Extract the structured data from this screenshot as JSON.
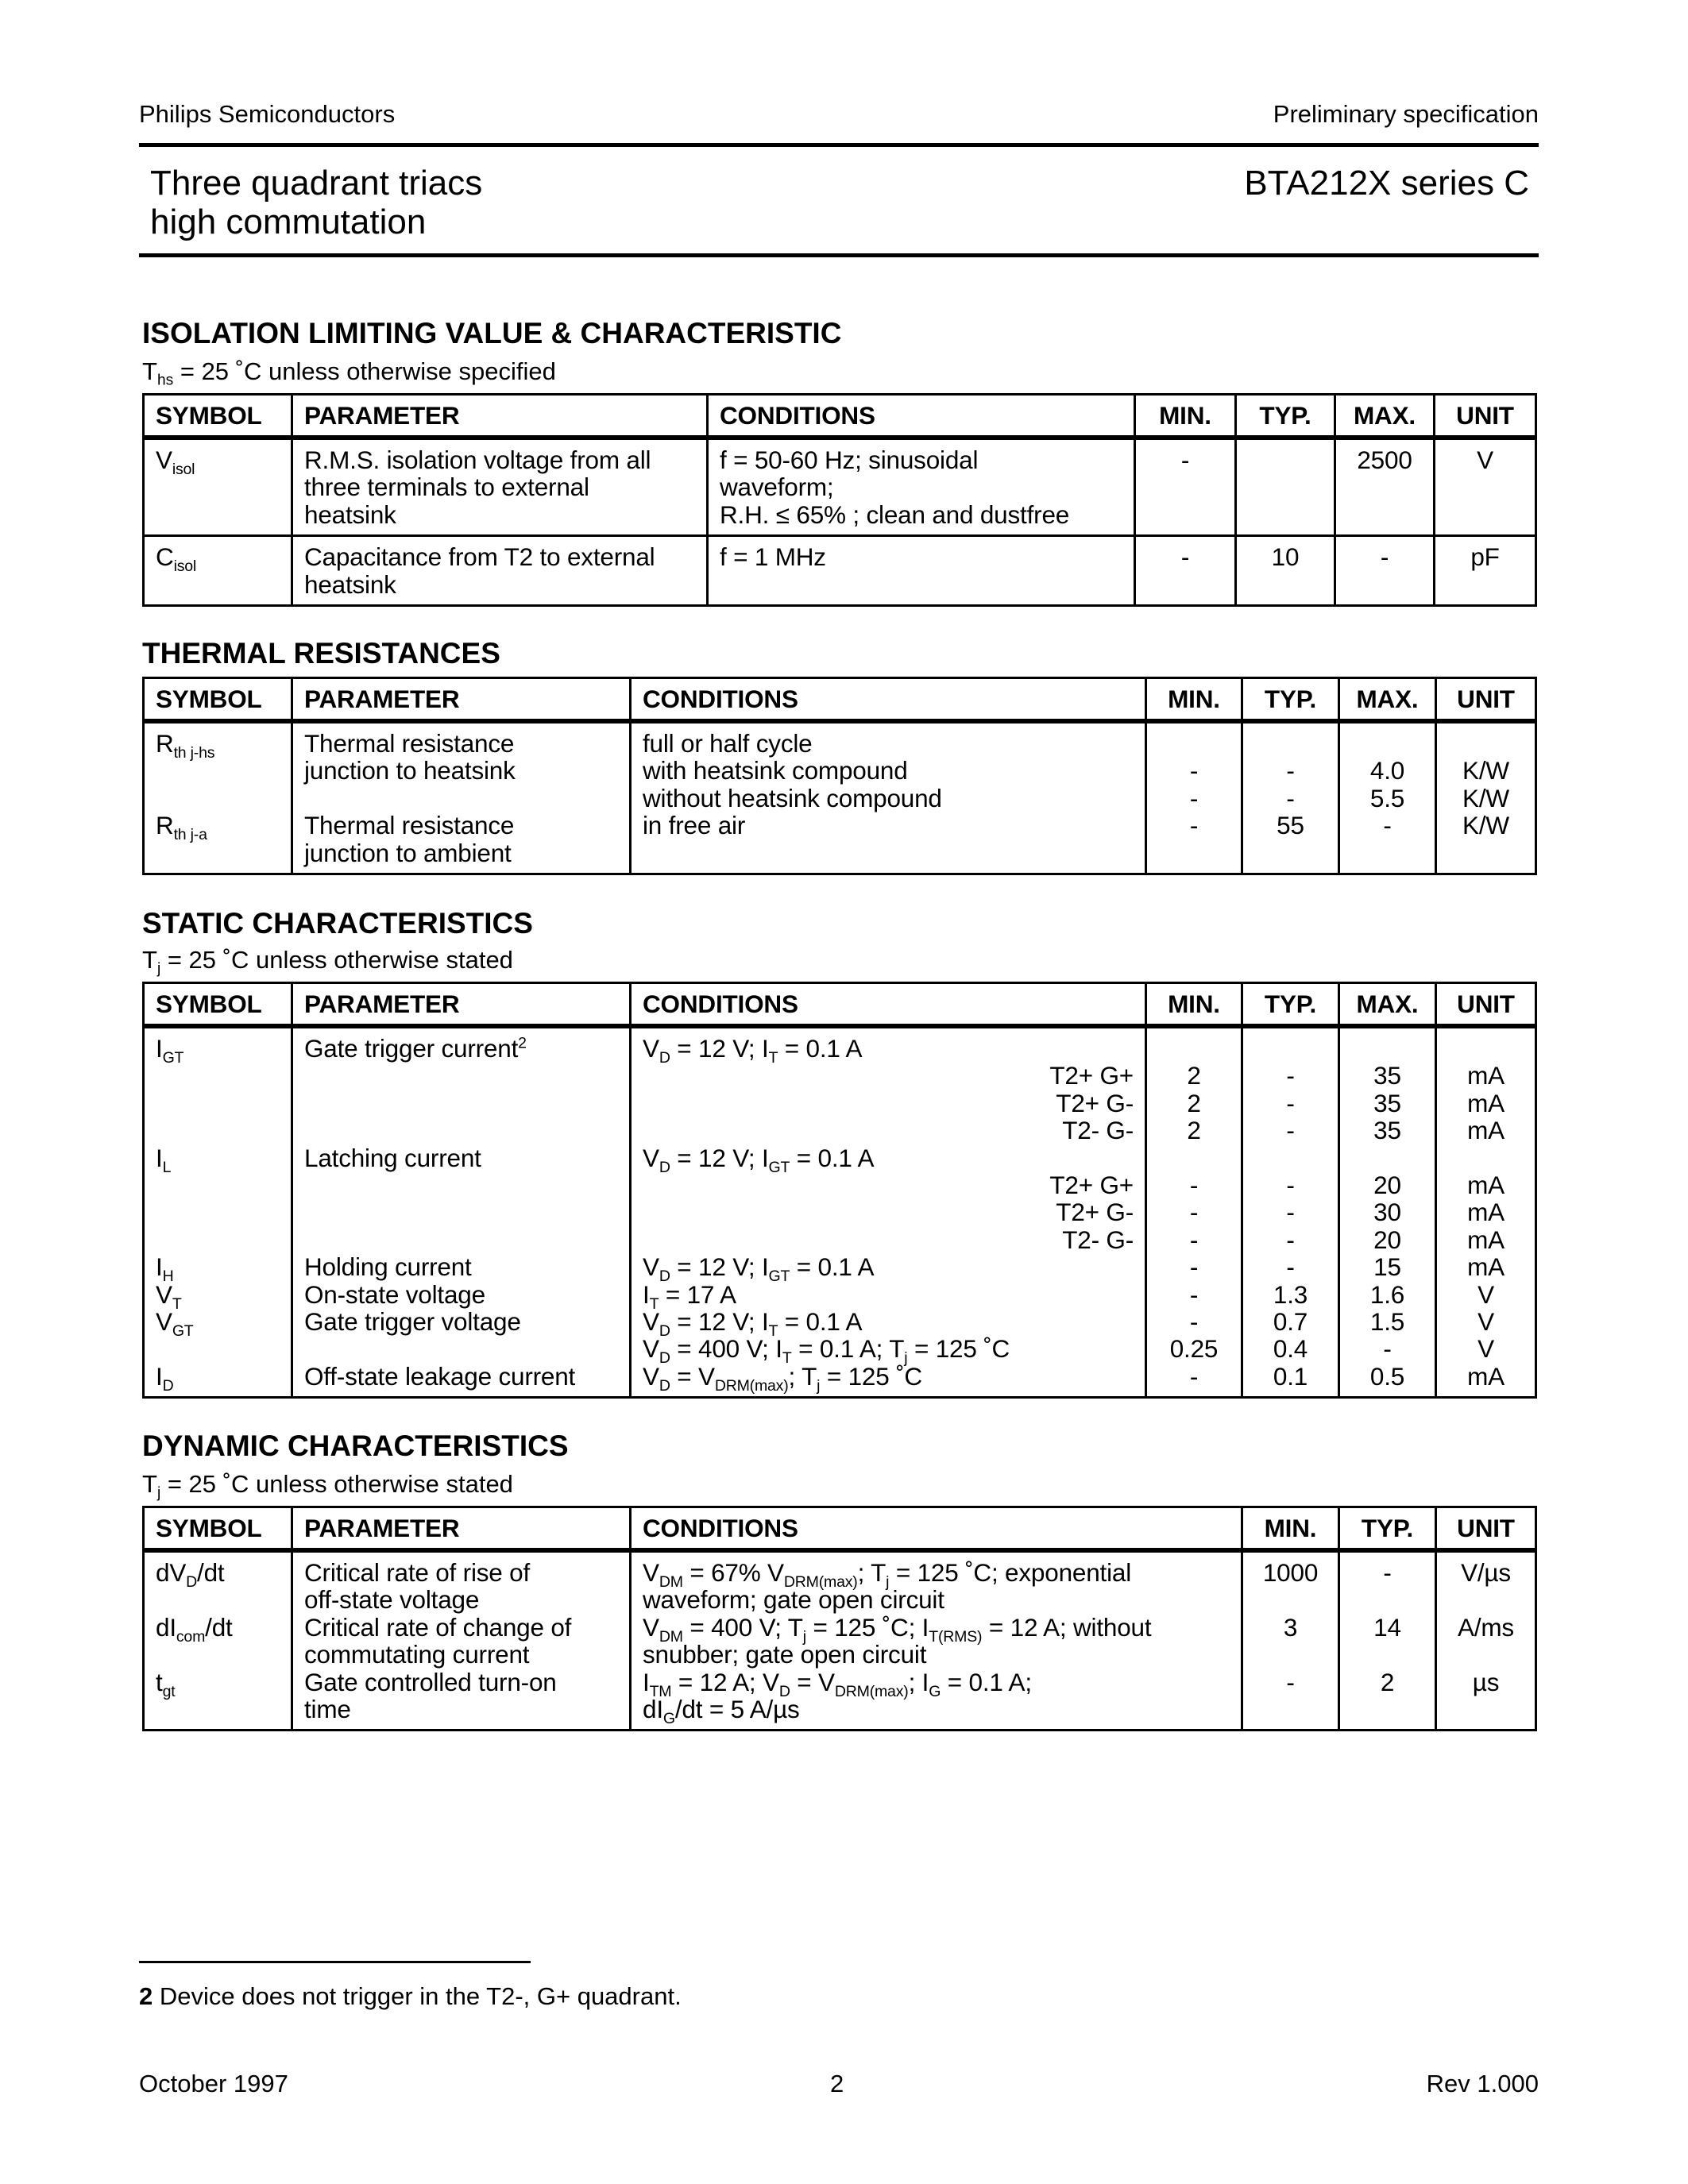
{
  "header": {
    "company": "Philips Semiconductors",
    "doc_type": "Preliminary specification",
    "title_line1": "Three quadrant triacs",
    "title_line2": "high commutation",
    "part": "BTA212X series C"
  },
  "sections": [
    {
      "title": "ISOLATION LIMITING VALUE & CHARACTERISTIC",
      "note": [
        "T",
        [
          "hs"
        ],
        " = 25 ˚C unless otherwise specified"
      ],
      "columns": [
        "SYMBOL",
        "PARAMETER",
        "CONDITIONS",
        "MIN.",
        "TYP.",
        "MAX.",
        "UNIT"
      ],
      "rows": [
        {
          "cells": [
            [
              [
                "V",
                [
                  "isol"
                ]
              ]
            ],
            [
              "R.M.S. isolation voltage from all",
              "three terminals to external",
              "heatsink"
            ],
            [
              "f = 50-60 Hz; sinusoidal",
              "waveform;",
              "R.H. ≤ 65% ; clean and dustfree"
            ],
            [
              "-"
            ],
            [
              ""
            ],
            [
              "2500"
            ],
            [
              "V"
            ]
          ]
        },
        {
          "cells": [
            [
              [
                "C",
                [
                  "isol"
                ]
              ]
            ],
            [
              "Capacitance from T2 to external",
              "heatsink"
            ],
            [
              "f = 1 MHz"
            ],
            [
              "-"
            ],
            [
              "10"
            ],
            [
              "-"
            ],
            [
              "pF"
            ]
          ]
        }
      ]
    },
    {
      "title": "THERMAL RESISTANCES",
      "note": null,
      "columns": [
        "SYMBOL",
        "PARAMETER",
        "CONDITIONS",
        "MIN.",
        "TYP.",
        "MAX.",
        "UNIT"
      ],
      "rows": [
        {
          "cells": [
            [
              [
                "R",
                [
                  "th j-hs"
                ]
              ],
              "",
              "",
              [
                "R",
                [
                  "th j-a"
                ]
              ]
            ],
            [
              "Thermal resistance",
              "junction to heatsink",
              "",
              "Thermal resistance",
              "junction to ambient"
            ],
            [
              "full or half cycle",
              "with heatsink compound",
              "without heatsink compound",
              "in free air"
            ],
            [
              "",
              "-",
              "-",
              "-"
            ],
            [
              "",
              "-",
              "-",
              "55"
            ],
            [
              "",
              "4.0",
              "5.5",
              "-"
            ],
            [
              "",
              "K/W",
              "K/W",
              "K/W"
            ]
          ]
        }
      ]
    },
    {
      "title": "STATIC CHARACTERISTICS",
      "note": [
        "T",
        [
          "j"
        ],
        " = 25 ˚C unless otherwise stated"
      ],
      "columns": [
        "SYMBOL",
        "PARAMETER",
        "CONDITIONS",
        "MIN.",
        "TYP.",
        "MAX.",
        "UNIT"
      ],
      "rows": [
        {
          "cells": [
            [
              [
                "I",
                [
                  "GT"
                ]
              ],
              "",
              "",
              "",
              [
                "I",
                [
                  "L"
                ]
              ],
              "",
              "",
              "",
              [
                "I",
                [
                  "H"
                ]
              ],
              [
                "V",
                [
                  "T"
                ]
              ],
              [
                "V",
                [
                  "GT"
                ]
              ],
              "",
              [
                "I",
                [
                  "D"
                ]
              ]
            ],
            [
              [
                "Gate trigger current",
                {
                  "sup": "2"
                }
              ],
              "",
              "",
              "",
              "Latching current",
              "",
              "",
              "",
              "Holding current",
              "On-state voltage",
              "Gate trigger voltage",
              "",
              "Off-state leakage current"
            ],
            [
              [
                "V",
                [
                  "D"
                ],
                " = 12 V; I",
                [
                  "T"
                ],
                " = 0.1 A"
              ],
              {
                "r": "T2+ G+"
              },
              {
                "r": "T2+ G-"
              },
              {
                "r": "T2- G-"
              },
              [
                "V",
                [
                  "D"
                ],
                " = 12 V; I",
                [
                  "GT"
                ],
                " = 0.1 A"
              ],
              {
                "r": "T2+ G+"
              },
              {
                "r": "T2+ G-"
              },
              {
                "r": "T2- G-"
              },
              [
                "V",
                [
                  "D"
                ],
                " = 12 V; I",
                [
                  "GT"
                ],
                " = 0.1 A"
              ],
              [
                "I",
                [
                  "T"
                ],
                " = 17 A"
              ],
              [
                "V",
                [
                  "D"
                ],
                " = 12 V; I",
                [
                  "T"
                ],
                " = 0.1 A"
              ],
              [
                "V",
                [
                  "D"
                ],
                " = 400 V; I",
                [
                  "T"
                ],
                " = 0.1 A; T",
                [
                  "j"
                ],
                " = 125 ˚C"
              ],
              [
                "V",
                [
                  "D"
                ],
                " = V",
                [
                  "DRM(max)"
                ],
                "; T",
                [
                  "j"
                ],
                " = 125 ˚C"
              ]
            ],
            [
              "",
              "2",
              "2",
              "2",
              "",
              "-",
              "-",
              "-",
              "-",
              "-",
              "-",
              "0.25",
              "-"
            ],
            [
              "",
              "-",
              "-",
              "-",
              "",
              "-",
              "-",
              "-",
              "-",
              "1.3",
              "0.7",
              "0.4",
              "0.1"
            ],
            [
              "",
              "35",
              "35",
              "35",
              "",
              "20",
              "30",
              "20",
              "15",
              "1.6",
              "1.5",
              "-",
              "0.5"
            ],
            [
              "",
              "mA",
              "mA",
              "mA",
              "",
              "mA",
              "mA",
              "mA",
              "mA",
              "V",
              "V",
              "V",
              "mA"
            ]
          ]
        }
      ]
    },
    {
      "title": "DYNAMIC CHARACTERISTICS",
      "note": [
        "T",
        [
          "j"
        ],
        " = 25 ˚C unless otherwise stated"
      ],
      "columns": [
        "SYMBOL",
        "PARAMETER",
        "CONDITIONS",
        "MIN.",
        "TYP.",
        "UNIT"
      ],
      "rows": [
        {
          "cells": [
            [
              [
                "dV",
                [
                  "D"
                ],
                "/dt"
              ],
              "",
              [
                "dI",
                [
                  "com"
                ],
                "/dt"
              ],
              "",
              [
                "t",
                [
                  "gt"
                ]
              ],
              ""
            ],
            [
              "Critical rate of rise of",
              "off-state voltage",
              "Critical rate of change of",
              "commutating current",
              "Gate controlled turn-on",
              "time"
            ],
            [
              [
                "V",
                [
                  "DM"
                ],
                " = 67% V",
                [
                  "DRM(max)"
                ],
                "; T",
                [
                  "j"
                ],
                " = 125 ˚C; exponential"
              ],
              "waveform; gate open circuit",
              [
                "V",
                [
                  "DM"
                ],
                " = 400 V; T",
                [
                  "j"
                ],
                " = 125 ˚C; I",
                [
                  "T(RMS)"
                ],
                " = 12 A; without"
              ],
              "snubber; gate open circuit",
              [
                "I",
                [
                  "TM"
                ],
                " = 12 A; V",
                [
                  "D"
                ],
                " = V",
                [
                  "DRM(max)"
                ],
                "; I",
                [
                  "G"
                ],
                " = 0.1 A;"
              ],
              [
                "dI",
                [
                  "G"
                ],
                "/dt = 5 A/µs"
              ]
            ],
            [
              "1000",
              "",
              "3",
              "",
              "-",
              ""
            ],
            [
              "-",
              "",
              "14",
              "",
              "2",
              ""
            ],
            [
              "V/µs",
              "",
              "A/ms",
              "",
              "µs",
              ""
            ]
          ]
        }
      ]
    }
  ],
  "footnote": {
    "number": "2",
    "text": " Device does not trigger in the T2-, G+ quadrant."
  },
  "footer": {
    "date": "October 1997",
    "page": "2",
    "revision": "Rev 1.000"
  }
}
